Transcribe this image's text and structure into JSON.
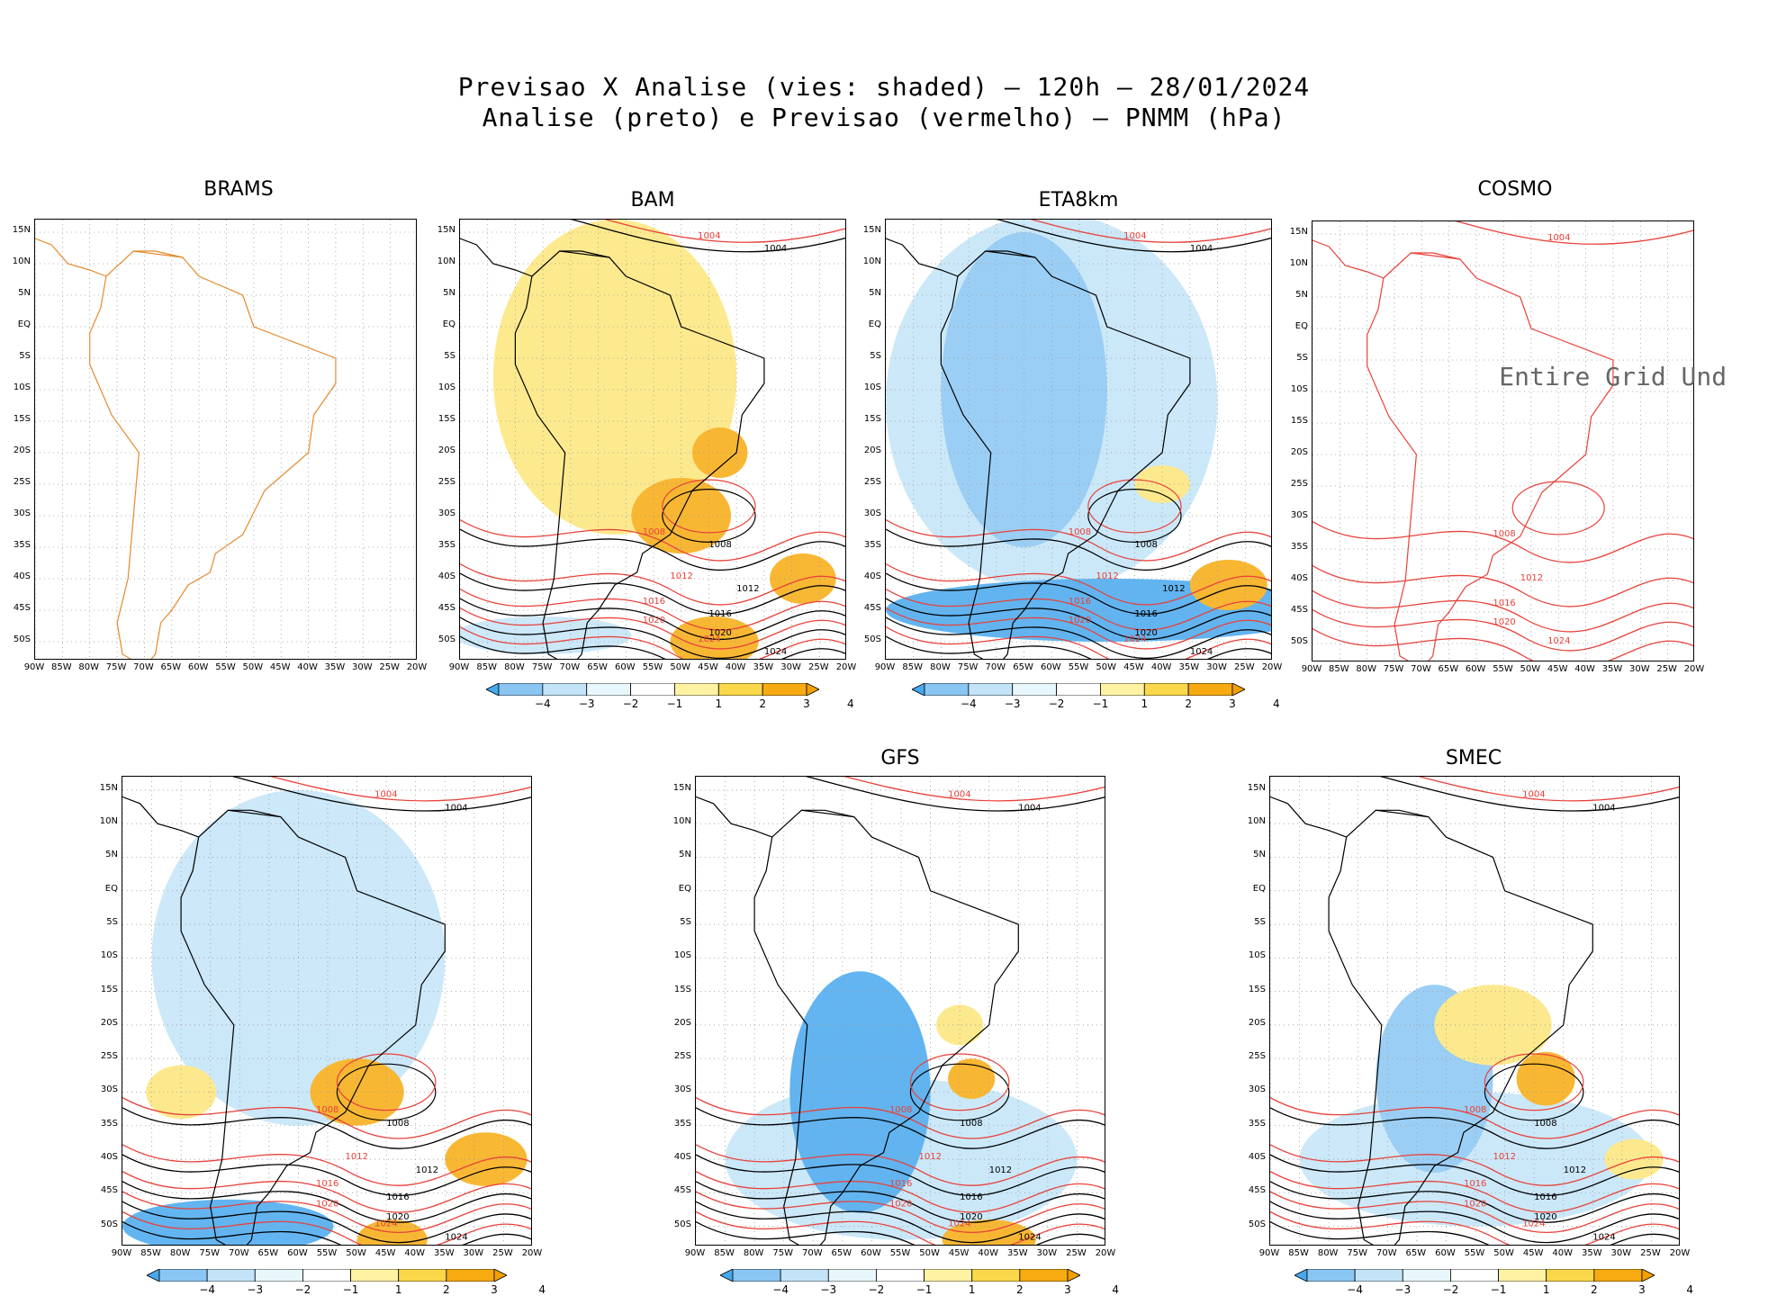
{
  "header": {
    "line1": "Previsao X Analise (vies: shaded) — 120h — 28/01/2024",
    "line2": "Analise (preto) e Previsao (vermelho) — PNMM (hPa)"
  },
  "panels": [
    {
      "id": "brams",
      "title": "BRAMS",
      "has_bias": false
    },
    {
      "id": "bam",
      "title": "BAM",
      "has_bias": true
    },
    {
      "id": "eta8km",
      "title": "ETA8km",
      "has_bias": true
    },
    {
      "id": "cosmo",
      "title": "COSMO",
      "has_bias": false,
      "note": "Entire Grid Und"
    },
    {
      "id": "unnamed",
      "title": "",
      "has_bias": true
    },
    {
      "id": "gfs",
      "title": "GFS",
      "has_bias": true
    },
    {
      "id": "smec",
      "title": "SMEC",
      "has_bias": true
    }
  ],
  "chart_data": {
    "type": "map",
    "title": "Previsao X Analise (vies: shaded) — 120h — 28/01/2024",
    "subtitle": "Analise (preto) e Previsao (vermelho) — PNMM (hPa)",
    "lat_labels": [
      "15N",
      "10N",
      "5N",
      "EQ",
      "5S",
      "10S",
      "15S",
      "20S",
      "25S",
      "30S",
      "35S",
      "40S",
      "45S",
      "50S"
    ],
    "lon_labels": [
      "90W",
      "85W",
      "80W",
      "75W",
      "70W",
      "65W",
      "60W",
      "55W",
      "50W",
      "45W",
      "40W",
      "35W",
      "30W",
      "25W",
      "20W"
    ],
    "xlim": [
      -90,
      -20
    ],
    "ylim": [
      -53,
      17
    ],
    "colorbar": {
      "labels": [
        "−4",
        "−3",
        "−2",
        "−1",
        "1",
        "2",
        "3",
        "4"
      ],
      "colors": [
        "#46a8ee",
        "#8ac6f3",
        "#c3e4f8",
        "#e8f7fb",
        "#ffffff",
        "#fff3a3",
        "#fbd84a",
        "#f7ab10",
        "#f4a000"
      ]
    },
    "contour_colors": {
      "analysis": "#000000",
      "forecast": "#e8413a"
    },
    "contour_labels": [
      "1004",
      "1008",
      "1012",
      "1016",
      "1020",
      "1024"
    ]
  }
}
